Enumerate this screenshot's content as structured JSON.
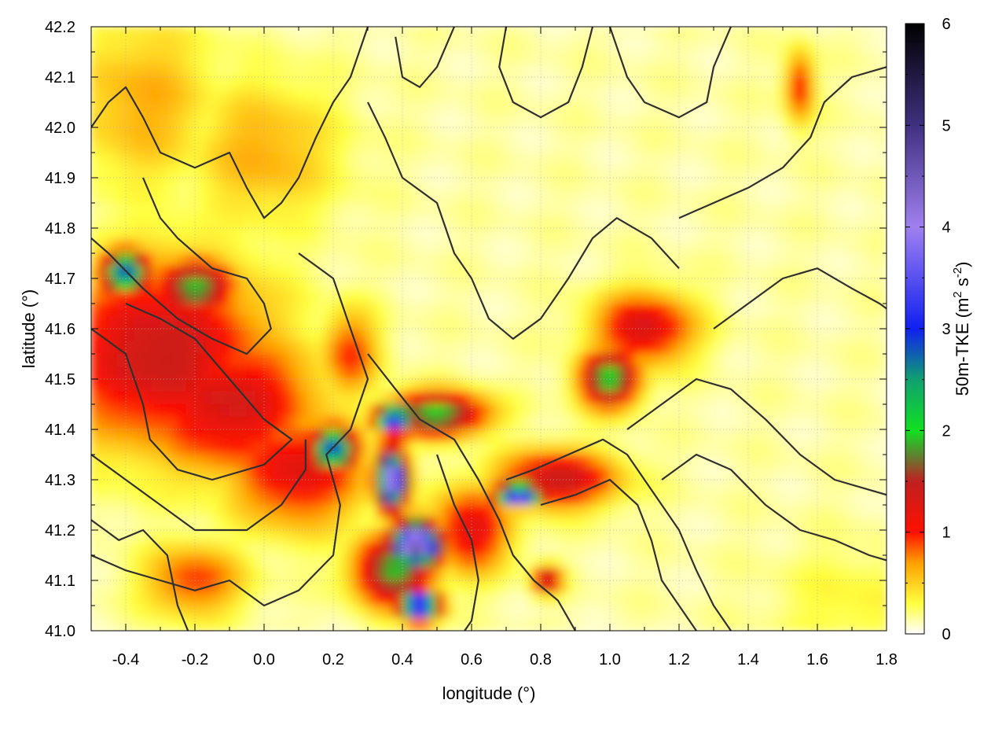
{
  "chart_data": {
    "type": "heatmap",
    "title": "",
    "xlabel": "longitude (°)",
    "ylabel": "latitude (°)",
    "xlim": [
      -0.5,
      1.8
    ],
    "ylim": [
      41.0,
      42.2
    ],
    "x_ticks": [
      "-0.4",
      "-0.2",
      "0.0",
      "0.2",
      "0.4",
      "0.6",
      "0.8",
      "1.0",
      "1.2",
      "1.4",
      "1.6",
      "1.8"
    ],
    "x_tick_values": [
      -0.4,
      -0.2,
      0.0,
      0.2,
      0.4,
      0.6,
      0.8,
      1.0,
      1.2,
      1.4,
      1.6,
      1.8
    ],
    "y_ticks": [
      "41.0",
      "41.1",
      "41.2",
      "41.3",
      "41.4",
      "41.5",
      "41.6",
      "41.7",
      "41.8",
      "41.9",
      "42.0",
      "42.1",
      "42.2"
    ],
    "y_tick_values": [
      41.0,
      41.1,
      41.2,
      41.3,
      41.4,
      41.5,
      41.6,
      41.7,
      41.8,
      41.9,
      42.0,
      42.1,
      42.2
    ],
    "grid": true,
    "colorbar": {
      "label_main": "50m-TKE (m",
      "label_sup1": "2",
      "label_mid": " s",
      "label_sup2": "-2",
      "label_end": ")",
      "range": [
        0,
        6
      ],
      "ticks": [
        "0",
        "1",
        "2",
        "3",
        "4",
        "5",
        "6"
      ],
      "tick_values": [
        0,
        1,
        2,
        3,
        4,
        5,
        6
      ],
      "colors": [
        {
          "v": 0.0,
          "c": "#ffffff"
        },
        {
          "v": 0.3,
          "c": "#ffff40"
        },
        {
          "v": 0.7,
          "c": "#ffa000"
        },
        {
          "v": 1.0,
          "c": "#ff1000"
        },
        {
          "v": 1.5,
          "c": "#c02020"
        },
        {
          "v": 1.75,
          "c": "#608030"
        },
        {
          "v": 2.0,
          "c": "#10e020"
        },
        {
          "v": 2.5,
          "c": "#10a070"
        },
        {
          "v": 3.0,
          "c": "#1020f0"
        },
        {
          "v": 4.0,
          "c": "#a080f0"
        },
        {
          "v": 5.0,
          "c": "#403080"
        },
        {
          "v": 6.0,
          "c": "#000000"
        }
      ]
    },
    "tke_features": [
      {
        "lon": -0.3,
        "lat": 41.55,
        "value": 1.3,
        "sx": 0.22,
        "sy": 0.13
      },
      {
        "lon": -0.1,
        "lat": 41.45,
        "value": 1.2,
        "sx": 0.18,
        "sy": 0.1
      },
      {
        "lon": 0.1,
        "lat": 41.32,
        "value": 1.1,
        "sx": 0.14,
        "sy": 0.08
      },
      {
        "lon": -0.4,
        "lat": 41.71,
        "value": 2.7,
        "sx": 0.05,
        "sy": 0.03
      },
      {
        "lon": -0.2,
        "lat": 41.68,
        "value": 1.8,
        "sx": 0.08,
        "sy": 0.04
      },
      {
        "lon": 0.2,
        "lat": 41.36,
        "value": 2.8,
        "sx": 0.05,
        "sy": 0.03
      },
      {
        "lon": 0.37,
        "lat": 41.3,
        "value": 4.2,
        "sx": 0.03,
        "sy": 0.04
      },
      {
        "lon": 0.38,
        "lat": 41.42,
        "value": 3.5,
        "sx": 0.04,
        "sy": 0.02
      },
      {
        "lon": 0.5,
        "lat": 41.43,
        "value": 1.9,
        "sx": 0.1,
        "sy": 0.03
      },
      {
        "lon": 0.44,
        "lat": 41.17,
        "value": 4.6,
        "sx": 0.05,
        "sy": 0.03
      },
      {
        "lon": 0.38,
        "lat": 41.12,
        "value": 1.8,
        "sx": 0.08,
        "sy": 0.05
      },
      {
        "lon": 0.45,
        "lat": 41.05,
        "value": 4.0,
        "sx": 0.04,
        "sy": 0.02
      },
      {
        "lon": 0.74,
        "lat": 41.27,
        "value": 3.8,
        "sx": 0.05,
        "sy": 0.015
      },
      {
        "lon": 0.85,
        "lat": 41.3,
        "value": 1.3,
        "sx": 0.12,
        "sy": 0.04
      },
      {
        "lon": 1.0,
        "lat": 41.5,
        "value": 1.9,
        "sx": 0.06,
        "sy": 0.04
      },
      {
        "lon": 1.1,
        "lat": 41.6,
        "value": 1.2,
        "sx": 0.1,
        "sy": 0.05
      },
      {
        "lon": 0.82,
        "lat": 41.1,
        "value": 1.4,
        "sx": 0.03,
        "sy": 0.02
      },
      {
        "lon": 0.6,
        "lat": 41.2,
        "value": 1.1,
        "sx": 0.08,
        "sy": 0.06
      },
      {
        "lon": 0.25,
        "lat": 41.55,
        "value": 0.8,
        "sx": 0.06,
        "sy": 0.06
      },
      {
        "lon": -0.2,
        "lat": 41.1,
        "value": 0.8,
        "sx": 0.1,
        "sy": 0.05
      },
      {
        "lon": 1.55,
        "lat": 42.08,
        "value": 0.9,
        "sx": 0.03,
        "sy": 0.05
      },
      {
        "lon": 0.0,
        "lat": 41.95,
        "value": 0.5,
        "sx": 0.15,
        "sy": 0.1
      },
      {
        "lon": -0.35,
        "lat": 42.05,
        "value": 0.5,
        "sx": 0.15,
        "sy": 0.12
      },
      {
        "lon": 1.7,
        "lat": 41.05,
        "value": 0.2,
        "sx": 0.15,
        "sy": 0.08
      }
    ],
    "contours": [
      [
        [
          -0.5,
          42.0
        ],
        [
          -0.45,
          42.05
        ],
        [
          -0.4,
          42.08
        ],
        [
          -0.35,
          42.02
        ],
        [
          -0.3,
          41.95
        ],
        [
          -0.2,
          41.92
        ],
        [
          -0.1,
          41.95
        ],
        [
          -0.05,
          41.88
        ],
        [
          0.0,
          41.82
        ],
        [
          0.05,
          41.85
        ],
        [
          0.1,
          41.9
        ],
        [
          0.15,
          41.98
        ],
        [
          0.2,
          42.05
        ],
        [
          0.25,
          42.1
        ],
        [
          0.3,
          42.2
        ]
      ],
      [
        [
          -0.35,
          41.9
        ],
        [
          -0.3,
          41.82
        ],
        [
          -0.25,
          41.78
        ],
        [
          -0.15,
          41.72
        ],
        [
          -0.05,
          41.7
        ],
        [
          0.0,
          41.65
        ],
        [
          0.02,
          41.6
        ],
        [
          -0.05,
          41.55
        ],
        [
          -0.15,
          41.58
        ],
        [
          -0.25,
          41.62
        ],
        [
          -0.35,
          41.68
        ],
        [
          -0.45,
          41.75
        ],
        [
          -0.5,
          41.78
        ]
      ],
      [
        [
          -0.5,
          41.6
        ],
        [
          -0.4,
          41.55
        ],
        [
          -0.35,
          41.45
        ],
        [
          -0.33,
          41.38
        ],
        [
          -0.25,
          41.32
        ],
        [
          -0.15,
          41.3
        ],
        [
          0.0,
          41.33
        ],
        [
          0.08,
          41.38
        ],
        [
          0.0,
          41.42
        ],
        [
          -0.1,
          41.5
        ],
        [
          -0.2,
          41.58
        ],
        [
          -0.3,
          41.62
        ],
        [
          -0.4,
          41.65
        ]
      ],
      [
        [
          -0.5,
          41.35
        ],
        [
          -0.4,
          41.3
        ],
        [
          -0.3,
          41.25
        ],
        [
          -0.2,
          41.2
        ],
        [
          -0.05,
          41.2
        ],
        [
          0.05,
          41.25
        ],
        [
          0.12,
          41.32
        ],
        [
          0.12,
          41.38
        ]
      ],
      [
        [
          -0.5,
          41.15
        ],
        [
          -0.4,
          41.12
        ],
        [
          -0.3,
          41.1
        ],
        [
          -0.2,
          41.08
        ],
        [
          -0.1,
          41.1
        ],
        [
          0.0,
          41.05
        ],
        [
          0.1,
          41.08
        ],
        [
          0.2,
          41.15
        ],
        [
          0.22,
          41.25
        ],
        [
          0.18,
          41.35
        ],
        [
          0.25,
          41.4
        ],
        [
          0.3,
          41.5
        ],
        [
          0.25,
          41.6
        ],
        [
          0.2,
          41.7
        ],
        [
          0.1,
          41.75
        ]
      ],
      [
        [
          0.3,
          42.05
        ],
        [
          0.35,
          41.98
        ],
        [
          0.4,
          41.9
        ],
        [
          0.5,
          41.85
        ],
        [
          0.55,
          41.75
        ],
        [
          0.6,
          41.7
        ],
        [
          0.65,
          41.62
        ],
        [
          0.72,
          41.58
        ],
        [
          0.8,
          41.62
        ],
        [
          0.88,
          41.7
        ],
        [
          0.95,
          41.78
        ],
        [
          1.02,
          41.82
        ],
        [
          1.12,
          41.78
        ],
        [
          1.2,
          41.72
        ]
      ],
      [
        [
          0.3,
          41.55
        ],
        [
          0.38,
          41.48
        ],
        [
          0.45,
          41.42
        ],
        [
          0.55,
          41.38
        ],
        [
          0.62,
          41.3
        ],
        [
          0.68,
          41.22
        ],
        [
          0.72,
          41.15
        ],
        [
          0.78,
          41.1
        ],
        [
          0.85,
          41.06
        ],
        [
          0.9,
          41.0
        ]
      ],
      [
        [
          0.5,
          41.35
        ],
        [
          0.55,
          41.25
        ],
        [
          0.6,
          41.18
        ],
        [
          0.62,
          41.1
        ],
        [
          0.6,
          41.02
        ],
        [
          0.58,
          41.0
        ]
      ],
      [
        [
          0.7,
          41.3
        ],
        [
          0.78,
          41.32
        ],
        [
          0.88,
          41.35
        ],
        [
          0.98,
          41.38
        ],
        [
          1.05,
          41.35
        ],
        [
          1.1,
          41.3
        ],
        [
          1.15,
          41.25
        ],
        [
          1.2,
          41.2
        ],
        [
          1.25,
          41.12
        ],
        [
          1.3,
          41.05
        ],
        [
          1.35,
          41.0
        ]
      ],
      [
        [
          0.8,
          41.25
        ],
        [
          0.9,
          41.27
        ],
        [
          1.0,
          41.3
        ],
        [
          1.08,
          41.25
        ],
        [
          1.12,
          41.18
        ],
        [
          1.15,
          41.1
        ],
        [
          1.2,
          41.05
        ],
        [
          1.25,
          41.0
        ]
      ],
      [
        [
          1.05,
          41.4
        ],
        [
          1.15,
          41.45
        ],
        [
          1.25,
          41.5
        ],
        [
          1.35,
          41.48
        ],
        [
          1.45,
          41.42
        ],
        [
          1.55,
          41.35
        ],
        [
          1.65,
          41.3
        ],
        [
          1.75,
          41.28
        ],
        [
          1.8,
          41.27
        ]
      ],
      [
        [
          1.15,
          41.3
        ],
        [
          1.25,
          41.35
        ],
        [
          1.35,
          41.32
        ],
        [
          1.45,
          41.25
        ],
        [
          1.55,
          41.2
        ],
        [
          1.65,
          41.18
        ],
        [
          1.75,
          41.15
        ],
        [
          1.8,
          41.14
        ]
      ],
      [
        [
          1.2,
          41.82
        ],
        [
          1.3,
          41.85
        ],
        [
          1.4,
          41.88
        ],
        [
          1.5,
          41.92
        ],
        [
          1.58,
          41.98
        ],
        [
          1.62,
          42.05
        ],
        [
          1.7,
          42.1
        ],
        [
          1.8,
          42.12
        ]
      ],
      [
        [
          1.3,
          41.6
        ],
        [
          1.4,
          41.65
        ],
        [
          1.5,
          41.7
        ],
        [
          1.6,
          41.72
        ],
        [
          1.7,
          41.68
        ],
        [
          1.78,
          41.65
        ],
        [
          1.8,
          41.64
        ]
      ],
      [
        [
          0.7,
          42.2
        ],
        [
          0.68,
          42.12
        ],
        [
          0.72,
          42.05
        ],
        [
          0.8,
          42.02
        ],
        [
          0.88,
          42.05
        ],
        [
          0.92,
          42.12
        ],
        [
          0.95,
          42.2
        ]
      ],
      [
        [
          1.0,
          42.2
        ],
        [
          1.05,
          42.1
        ],
        [
          1.1,
          42.05
        ],
        [
          1.2,
          42.02
        ],
        [
          1.28,
          42.05
        ],
        [
          1.3,
          42.12
        ],
        [
          1.35,
          42.2
        ]
      ],
      [
        [
          0.55,
          42.2
        ],
        [
          0.5,
          42.12
        ],
        [
          0.45,
          42.08
        ],
        [
          0.4,
          42.1
        ],
        [
          0.38,
          42.18
        ]
      ],
      [
        [
          -0.5,
          41.22
        ],
        [
          -0.42,
          41.18
        ],
        [
          -0.35,
          41.2
        ],
        [
          -0.28,
          41.15
        ],
        [
          -0.25,
          41.05
        ],
        [
          -0.22,
          41.0
        ]
      ]
    ]
  }
}
